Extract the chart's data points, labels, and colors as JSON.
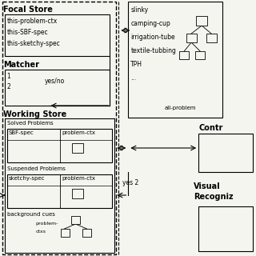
{
  "bg_color": "#f5f5f0",
  "lw": 0.8,
  "fs_small": 5.5,
  "fs_label": 6.5,
  "fs_bold": 7.0,
  "focal_lines": [
    "this-problem-ctx",
    "this-SBF-spec",
    "this-sketchy-spec"
  ],
  "right_items": [
    "slinky",
    "camping-cup",
    "irrigation-tube",
    "textile-tubbing",
    "TPH",
    "..."
  ],
  "all_problem_text": "all-problem",
  "yes2_text": "yes 2"
}
